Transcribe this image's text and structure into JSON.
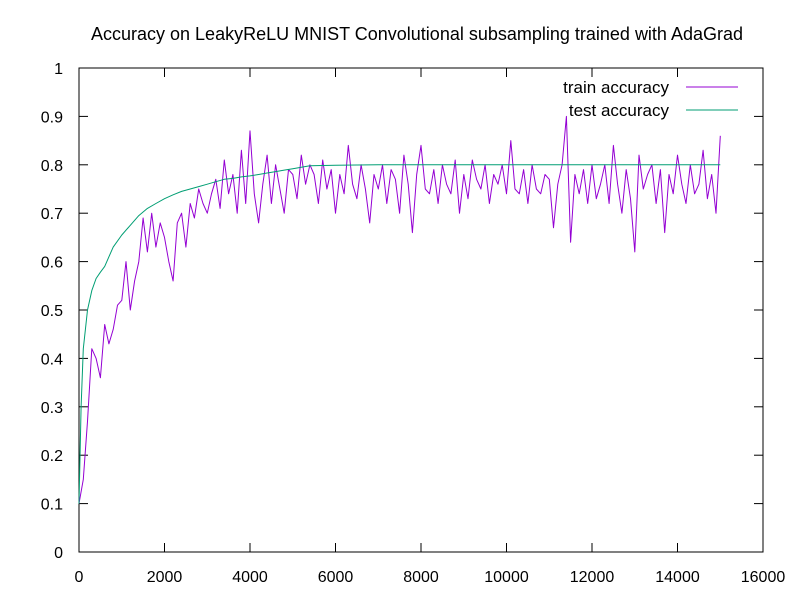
{
  "chart_data": {
    "type": "line",
    "title": "Accuracy on LeakyReLU MNIST Convolutional subsampling trained with AdaGrad",
    "xlabel": "",
    "ylabel": "",
    "xlim": [
      0,
      16000
    ],
    "ylim": [
      0,
      1
    ],
    "x_ticks": [
      0,
      2000,
      4000,
      6000,
      8000,
      10000,
      12000,
      14000,
      16000
    ],
    "y_ticks": [
      0,
      0.1,
      0.2,
      0.3,
      0.4,
      0.5,
      0.6,
      0.7,
      0.8,
      0.9,
      1
    ],
    "y_tick_labels": [
      "0",
      "0.1",
      "0.2",
      "0.3",
      "0.4",
      "0.5",
      "0.6",
      "0.7",
      "0.8",
      "0.9",
      "1"
    ],
    "grid": false,
    "legend_position": "top-right",
    "series": [
      {
        "name": "train accuracy",
        "color": "#9400d3",
        "x": [
          0,
          100,
          200,
          300,
          400,
          500,
          600,
          700,
          800,
          900,
          1000,
          1100,
          1200,
          1300,
          1400,
          1500,
          1600,
          1700,
          1800,
          1900,
          2000,
          2100,
          2200,
          2300,
          2400,
          2500,
          2600,
          2700,
          2800,
          2900,
          3000,
          3100,
          3200,
          3300,
          3400,
          3500,
          3600,
          3700,
          3800,
          3900,
          4000,
          4100,
          4200,
          4300,
          4400,
          4500,
          4600,
          4700,
          4800,
          4900,
          5000,
          5100,
          5200,
          5300,
          5400,
          5500,
          5600,
          5700,
          5800,
          5900,
          6000,
          6100,
          6200,
          6300,
          6400,
          6500,
          6600,
          6700,
          6800,
          6900,
          7000,
          7100,
          7200,
          7300,
          7400,
          7500,
          7600,
          7700,
          7800,
          7900,
          8000,
          8100,
          8200,
          8300,
          8400,
          8500,
          8600,
          8700,
          8800,
          8900,
          9000,
          9100,
          9200,
          9300,
          9400,
          9500,
          9600,
          9700,
          9800,
          9900,
          10000,
          10100,
          10200,
          10300,
          10400,
          10500,
          10600,
          10700,
          10800,
          10900,
          11000,
          11100,
          11200,
          11300,
          11400,
          11500,
          11600,
          11700,
          11800,
          11900,
          12000,
          12100,
          12200,
          12300,
          12400,
          12500,
          12600,
          12700,
          12800,
          12900,
          13000,
          13100,
          13200,
          13300,
          13400,
          13500,
          13600,
          13700,
          13800,
          13900,
          14000,
          14100,
          14200,
          14300,
          14400,
          14500,
          14600,
          14700,
          14800,
          14900,
          15000
        ],
        "values": [
          0.1,
          0.15,
          0.27,
          0.42,
          0.4,
          0.36,
          0.47,
          0.43,
          0.46,
          0.51,
          0.52,
          0.6,
          0.5,
          0.56,
          0.6,
          0.69,
          0.62,
          0.7,
          0.63,
          0.68,
          0.65,
          0.6,
          0.56,
          0.68,
          0.7,
          0.63,
          0.72,
          0.69,
          0.75,
          0.72,
          0.7,
          0.74,
          0.77,
          0.71,
          0.81,
          0.74,
          0.78,
          0.7,
          0.83,
          0.72,
          0.87,
          0.74,
          0.68,
          0.76,
          0.82,
          0.72,
          0.8,
          0.75,
          0.7,
          0.79,
          0.78,
          0.73,
          0.82,
          0.76,
          0.8,
          0.78,
          0.72,
          0.81,
          0.75,
          0.79,
          0.7,
          0.78,
          0.74,
          0.84,
          0.76,
          0.73,
          0.8,
          0.75,
          0.68,
          0.78,
          0.75,
          0.8,
          0.72,
          0.79,
          0.77,
          0.7,
          0.82,
          0.76,
          0.66,
          0.78,
          0.84,
          0.75,
          0.74,
          0.79,
          0.72,
          0.8,
          0.76,
          0.74,
          0.81,
          0.7,
          0.78,
          0.73,
          0.81,
          0.77,
          0.75,
          0.8,
          0.72,
          0.78,
          0.76,
          0.8,
          0.74,
          0.85,
          0.75,
          0.74,
          0.79,
          0.72,
          0.8,
          0.75,
          0.74,
          0.78,
          0.77,
          0.67,
          0.76,
          0.8,
          0.9,
          0.64,
          0.78,
          0.74,
          0.79,
          0.72,
          0.8,
          0.73,
          0.76,
          0.8,
          0.72,
          0.84,
          0.76,
          0.7,
          0.79,
          0.73,
          0.62,
          0.82,
          0.75,
          0.78,
          0.8,
          0.72,
          0.79,
          0.66,
          0.78,
          0.74,
          0.82,
          0.76,
          0.72,
          0.8,
          0.74,
          0.76,
          0.83,
          0.73,
          0.78,
          0.7,
          0.86
        ]
      },
      {
        "name": "test accuracy",
        "color": "#009e73",
        "x": [
          0,
          50,
          100,
          150,
          200,
          300,
          400,
          500,
          600,
          700,
          800,
          1000,
          1200,
          1400,
          1600,
          1800,
          2000,
          2200,
          2400,
          2600,
          2800,
          3000,
          3200,
          3400,
          3600,
          3800,
          4000,
          4200,
          4400,
          4600,
          4800,
          5000,
          5200,
          5400,
          6000,
          7000,
          8000,
          9000,
          10000,
          11000,
          12000,
          13000,
          14000,
          15000
        ],
        "values": [
          0.1,
          0.3,
          0.42,
          0.46,
          0.5,
          0.54,
          0.565,
          0.578,
          0.59,
          0.61,
          0.63,
          0.655,
          0.675,
          0.695,
          0.71,
          0.72,
          0.73,
          0.738,
          0.745,
          0.75,
          0.755,
          0.76,
          0.765,
          0.77,
          0.772,
          0.775,
          0.777,
          0.78,
          0.783,
          0.786,
          0.789,
          0.792,
          0.795,
          0.798,
          0.799,
          0.8,
          0.8,
          0.8,
          0.8,
          0.8,
          0.8,
          0.8,
          0.8,
          0.8
        ]
      }
    ]
  }
}
